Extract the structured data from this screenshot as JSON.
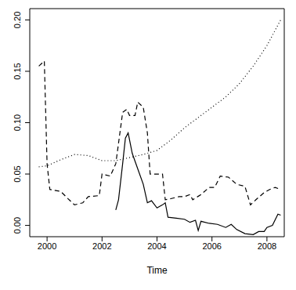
{
  "chart_data": {
    "type": "line",
    "xlabel": "Time",
    "xlim": [
      1999.37,
      2008.63
    ],
    "xticks": [
      2000,
      2002,
      2004,
      2006,
      2008
    ],
    "ylim": [
      -0.011,
      0.211
    ],
    "yticks": [
      {
        "value": 0,
        "label": "0.00"
      },
      {
        "value": 0.05,
        "label": "0.05"
      },
      {
        "value": 0.1,
        "label": "0.10"
      },
      {
        "value": 0.15,
        "label": "0.15"
      },
      {
        "value": 0.2,
        "label": "0.20"
      }
    ],
    "grid": false,
    "series": [
      {
        "color": "#000000",
        "line_style": "solid",
        "x": [
          2002.5,
          2002.6,
          2002.75,
          2002.85,
          2002.95,
          2003.1,
          2003.3,
          2003.5,
          2003.65,
          2003.8,
          2004.0,
          2004.2,
          2004.3,
          2004.4,
          2004.7,
          2005.0,
          2005.2,
          2005.4,
          2005.5,
          2005.6,
          2005.9,
          2006.2,
          2006.5,
          2006.7,
          2006.9,
          2007.2,
          2007.5,
          2007.7,
          2007.9,
          2008.0,
          2008.2,
          2008.4,
          2008.5
        ],
        "values": [
          0.015,
          0.025,
          0.06,
          0.085,
          0.09,
          0.07,
          0.055,
          0.04,
          0.022,
          0.024,
          0.017,
          0.02,
          0.022,
          0.008,
          0.007,
          0.006,
          0.003,
          0.005,
          -0.005,
          0.004,
          0.002,
          0.001,
          -0.002,
          0.001,
          -0.004,
          -0.008,
          -0.009,
          -0.006,
          -0.006,
          -0.002,
          0.0,
          0.011,
          0.01
        ]
      },
      {
        "color": "#000000",
        "line_style": "dashed",
        "x": [
          1999.7,
          1999.9,
          2000.0,
          2000.1,
          2000.5,
          2000.8,
          2001.0,
          2001.3,
          2001.5,
          2001.9,
          2002.0,
          2002.3,
          2002.5,
          2002.75,
          2002.9,
          2003.0,
          2003.2,
          2003.3,
          2003.5,
          2003.65,
          2003.75,
          2004.0,
          2004.2,
          2004.3,
          2004.5,
          2004.8,
          2005.0,
          2005.2,
          2005.3,
          2005.6,
          2005.9,
          2006.1,
          2006.3,
          2006.6,
          2006.9,
          2007.2,
          2007.4,
          2007.6,
          2007.9,
          2008.1,
          2008.3,
          2008.5
        ],
        "values": [
          0.155,
          0.16,
          0.06,
          0.035,
          0.033,
          0.025,
          0.02,
          0.022,
          0.028,
          0.029,
          0.05,
          0.048,
          0.06,
          0.11,
          0.113,
          0.107,
          0.107,
          0.12,
          0.115,
          0.09,
          0.05,
          0.05,
          0.05,
          0.025,
          0.026,
          0.028,
          0.028,
          0.03,
          0.025,
          0.03,
          0.037,
          0.037,
          0.048,
          0.047,
          0.04,
          0.038,
          0.02,
          0.025,
          0.032,
          0.035,
          0.037,
          0.035
        ]
      },
      {
        "color": "#000000",
        "line_style": "dotted",
        "x": [
          1999.7,
          2000.0,
          2000.5,
          2001.0,
          2001.5,
          2002.0,
          2002.5,
          2003.0,
          2003.5,
          2004.0,
          2004.5,
          2005.0,
          2005.5,
          2006.0,
          2006.5,
          2007.0,
          2007.5,
          2008.0,
          2008.5
        ],
        "values": [
          0.057,
          0.058,
          0.064,
          0.069,
          0.068,
          0.063,
          0.063,
          0.066,
          0.069,
          0.073,
          0.083,
          0.095,
          0.105,
          0.115,
          0.125,
          0.138,
          0.155,
          0.175,
          0.2
        ]
      }
    ]
  }
}
